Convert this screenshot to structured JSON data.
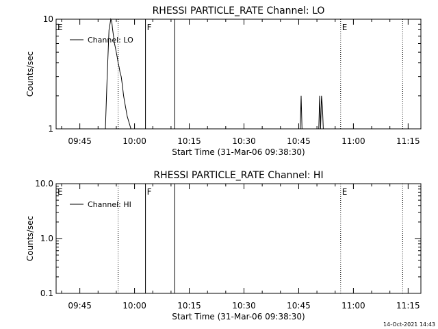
{
  "timestamp": "14-Oct-2021 14:43",
  "chart_data": [
    {
      "type": "line",
      "title": "RHESSI PARTICLE_RATE Channel: LO",
      "xlabel": "Start Time (31-Mar-06 09:38:30)",
      "ylabel": "Counts/sec",
      "yscale": "log",
      "ylim": [
        1,
        10
      ],
      "xlim": [
        "09:38:30",
        "11:18:30"
      ],
      "x_ticks": [
        "09:45",
        "10:00",
        "10:15",
        "10:30",
        "10:45",
        "11:00",
        "11:15"
      ],
      "y_ticks": [
        "1",
        "10"
      ],
      "legend": {
        "label": "Channel: LO",
        "placement": "top-left"
      },
      "markers": [
        {
          "label": "E",
          "time": "09:38:30",
          "style": "dotted"
        },
        {
          "label": "",
          "time": "09:55:30",
          "style": "dotted"
        },
        {
          "label": "F",
          "time": "10:03:00",
          "style": "solid"
        },
        {
          "label": "",
          "time": "10:11:00",
          "style": "solid"
        },
        {
          "label": "E",
          "time": "10:56:30",
          "style": "dotted"
        },
        {
          "label": "",
          "time": "11:13:30",
          "style": "dotted"
        }
      ],
      "series": [
        {
          "x": [
            "09:52:00",
            "09:52:30",
            "09:53:00",
            "09:53:30",
            "09:53:45",
            "09:54:00",
            "09:54:15",
            "09:54:30",
            "09:54:45",
            "09:55:00",
            "09:55:15",
            "09:55:30",
            "09:55:45",
            "09:56:00",
            "09:56:20",
            "09:56:40",
            "09:57:00",
            "09:57:30",
            "09:58:00",
            "09:59:00",
            "10:45:25",
            "10:45:40",
            "10:45:55",
            "10:50:30",
            "10:50:45",
            "10:51:00",
            "10:51:15",
            "10:51:30",
            "10:51:45"
          ],
          "y": [
            1,
            3,
            8,
            10,
            9.5,
            8,
            7,
            6,
            5.5,
            5,
            4.5,
            4,
            3.7,
            3.3,
            3,
            2.5,
            2,
            1.6,
            1.3,
            1,
            1,
            2,
            1,
            1,
            2,
            1,
            2,
            1.6,
            1
          ],
          "segments": [
            [
              0,
              19
            ],
            [
              20,
              22
            ],
            [
              23,
              28
            ]
          ]
        }
      ]
    },
    {
      "type": "line",
      "title": "RHESSI PARTICLE_RATE Channel: HI",
      "xlabel": "Start Time (31-Mar-06 09:38:30)",
      "ylabel": "Counts/sec",
      "yscale": "log",
      "ylim": [
        0.1,
        10
      ],
      "xlim": [
        "09:38:30",
        "11:18:30"
      ],
      "x_ticks": [
        "09:45",
        "10:00",
        "10:15",
        "10:30",
        "10:45",
        "11:00",
        "11:15"
      ],
      "y_ticks": [
        "0.1",
        "1.0",
        "10.0"
      ],
      "legend": {
        "label": "Channel: HI",
        "placement": "top-left"
      },
      "markers": [
        {
          "label": "E",
          "time": "09:38:30",
          "style": "dotted"
        },
        {
          "label": "",
          "time": "09:55:30",
          "style": "dotted"
        },
        {
          "label": "F",
          "time": "10:03:00",
          "style": "solid"
        },
        {
          "label": "",
          "time": "10:11:00",
          "style": "solid"
        },
        {
          "label": "E",
          "time": "10:56:30",
          "style": "dotted"
        },
        {
          "label": "",
          "time": "11:13:30",
          "style": "dotted"
        }
      ],
      "series": [
        {
          "x": [],
          "y": [],
          "segments": []
        }
      ]
    }
  ]
}
